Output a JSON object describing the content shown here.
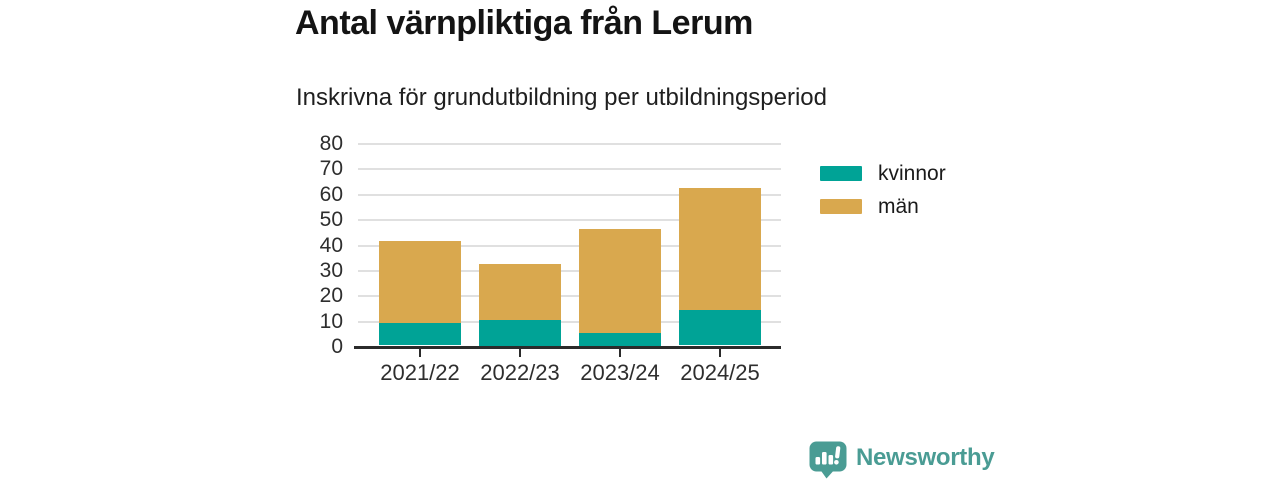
{
  "header": {
    "title": "Antal värnpliktiga från Lerum",
    "subtitle": "Inskrivna för grundutbildning per utbildningsperiod"
  },
  "chart_data": {
    "type": "bar",
    "stacked": true,
    "title": "Antal värnpliktiga från Lerum",
    "subtitle": "Inskrivna för grundutbildning per utbildningsperiod",
    "categories": [
      "2021/22",
      "2022/23",
      "2023/24",
      "2024/25"
    ],
    "series": [
      {
        "name": "kvinnor",
        "color": "#00a396",
        "values": [
          9,
          10,
          5,
          14
        ]
      },
      {
        "name": "män",
        "color": "#d9a84e",
        "values": [
          32,
          22,
          41,
          48
        ]
      }
    ],
    "stack_totals": [
      41,
      32,
      46,
      62
    ],
    "xlabel": "",
    "ylabel": "",
    "ylim": [
      0,
      80
    ],
    "yticks": [
      0,
      10,
      20,
      30,
      40,
      50,
      60,
      70,
      80
    ],
    "grid": "horizontal",
    "legend_position": "right-of-plot"
  },
  "legend": {
    "items": [
      {
        "label": "kvinnor",
        "color": "#00a396"
      },
      {
        "label": "män",
        "color": "#d9a84e"
      }
    ]
  },
  "branding": {
    "logo_text": "Newsworthy",
    "logo_color": "#4a9c94"
  },
  "colors": {
    "series_kvinnor": "#00a396",
    "series_man": "#d9a84e",
    "gridline": "#e0e0e0",
    "axis": "#2b2b2b",
    "text": "#1a1a1a",
    "brand_teal": "#4a9c94"
  }
}
